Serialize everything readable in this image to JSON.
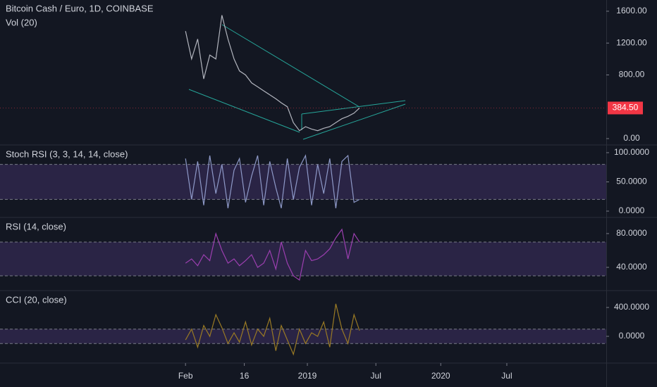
{
  "chart_data": [
    {
      "type": "line",
      "title": "Bitcoin Cash / Euro, 1D, COINBASE",
      "subtitle": "Vol (20)",
      "x": [
        30.6,
        31.6,
        32.6,
        33.6,
        34.6,
        35.6,
        36.6,
        37.6,
        38.6,
        39.5,
        40.5,
        41.5,
        42.5,
        43.5,
        44.5,
        45.5,
        46.4,
        47.4,
        48.4,
        49.4,
        50.4,
        51.4,
        52.4,
        53.4,
        54.4,
        55.4,
        56.4,
        57.4,
        58.4,
        59.3
      ],
      "values": [
        1350,
        1000,
        1250,
        750,
        1050,
        1000,
        1550,
        1250,
        1000,
        850,
        800,
        700,
        650,
        600,
        550,
        500,
        450,
        400,
        200,
        100,
        150,
        120,
        100,
        130,
        150,
        200,
        250,
        280,
        320,
        384.5
      ],
      "color": "#b2b5be",
      "xlim": [
        0,
        100
      ],
      "ylim": [
        -71,
        1741
      ],
      "yticks": [
        {
          "value": 0,
          "label": "0.00"
        },
        {
          "value": 800,
          "label": "800.00"
        },
        {
          "value": 1200,
          "label": "1200.00"
        },
        {
          "value": 1600,
          "label": "1600.00"
        }
      ],
      "last_price": {
        "value": 384.5,
        "label": "384.50",
        "color": "#f23645"
      }
    },
    {
      "type": "line",
      "title": "Stoch RSI (3, 3, 14, 14, close)",
      "x": [
        30.6,
        31.6,
        32.6,
        33.6,
        34.6,
        35.6,
        36.6,
        37.6,
        38.6,
        39.5,
        40.5,
        41.5,
        42.5,
        43.5,
        44.5,
        45.5,
        46.4,
        47.4,
        48.4,
        49.4,
        50.4,
        51.4,
        52.4,
        53.4,
        54.4,
        55.4,
        56.4,
        57.4,
        58.4,
        59.3
      ],
      "values": [
        90,
        20,
        85,
        10,
        95,
        30,
        80,
        5,
        70,
        90,
        15,
        60,
        95,
        10,
        85,
        40,
        5,
        90,
        20,
        75,
        95,
        10,
        80,
        30,
        90,
        5,
        85,
        95,
        15,
        20
      ],
      "color": "#8e99c8",
      "xlim": [
        0,
        100
      ],
      "ylim": [
        -9.6,
        112
      ],
      "bands": [
        20,
        80
      ],
      "yticks": [
        {
          "value": 0,
          "label": "0.0000"
        },
        {
          "value": 50,
          "label": "50.0000"
        },
        {
          "value": 100,
          "label": "100.0000"
        }
      ]
    },
    {
      "type": "line",
      "title": "RSI (14, close)",
      "x": [
        30.6,
        31.6,
        32.6,
        33.6,
        34.6,
        35.6,
        36.6,
        37.6,
        38.6,
        39.5,
        40.5,
        41.5,
        42.5,
        43.5,
        44.5,
        45.5,
        46.4,
        47.4,
        48.4,
        49.4,
        50.4,
        51.4,
        52.4,
        53.4,
        54.4,
        55.4,
        56.4,
        57.4,
        58.4,
        59.3
      ],
      "values": [
        45,
        50,
        42,
        55,
        48,
        80,
        60,
        45,
        50,
        42,
        48,
        55,
        40,
        45,
        60,
        38,
        70,
        45,
        30,
        25,
        60,
        48,
        50,
        55,
        62,
        75,
        85,
        50,
        80,
        70
      ],
      "color": "#9c3fb0",
      "xlim": [
        0,
        100
      ],
      "ylim": [
        13.3,
        98.3
      ],
      "bands": [
        30,
        70
      ],
      "yticks": [
        {
          "value": 40,
          "label": "40.0000"
        },
        {
          "value": 80,
          "label": "80.0000"
        }
      ]
    },
    {
      "type": "line",
      "title": "CCI (20, close)",
      "x": [
        30.6,
        31.6,
        32.6,
        33.6,
        34.6,
        35.6,
        36.6,
        37.6,
        38.6,
        39.5,
        40.5,
        41.5,
        42.5,
        43.5,
        44.5,
        45.5,
        46.4,
        47.4,
        48.4,
        49.4,
        50.4,
        51.4,
        52.4,
        53.4,
        54.4,
        55.4,
        56.4,
        57.4,
        58.4,
        59.3
      ],
      "values": [
        -50,
        100,
        -150,
        150,
        0,
        300,
        120,
        -100,
        50,
        -80,
        200,
        -120,
        100,
        0,
        250,
        -200,
        150,
        -50,
        -250,
        100,
        -100,
        50,
        0,
        200,
        -150,
        450,
        100,
        -100,
        300,
        80
      ],
      "color": "#9a7a24",
      "xlim": [
        0,
        100
      ],
      "ylim": [
        -361,
        624
      ],
      "bands": [
        -100,
        100
      ],
      "yticks": [
        {
          "value": 0,
          "label": "0.0000"
        },
        {
          "value": 400,
          "label": "400.0000"
        }
      ],
      "xticks": [
        {
          "value": 30.6,
          "label": "Feb"
        },
        {
          "value": 40.3,
          "label": "16"
        },
        {
          "value": 50.7,
          "label": "2019"
        },
        {
          "value": 62,
          "label": "Jul"
        },
        {
          "value": 72.7,
          "label": "2020"
        },
        {
          "value": 83.6,
          "label": "Jul"
        }
      ]
    }
  ]
}
